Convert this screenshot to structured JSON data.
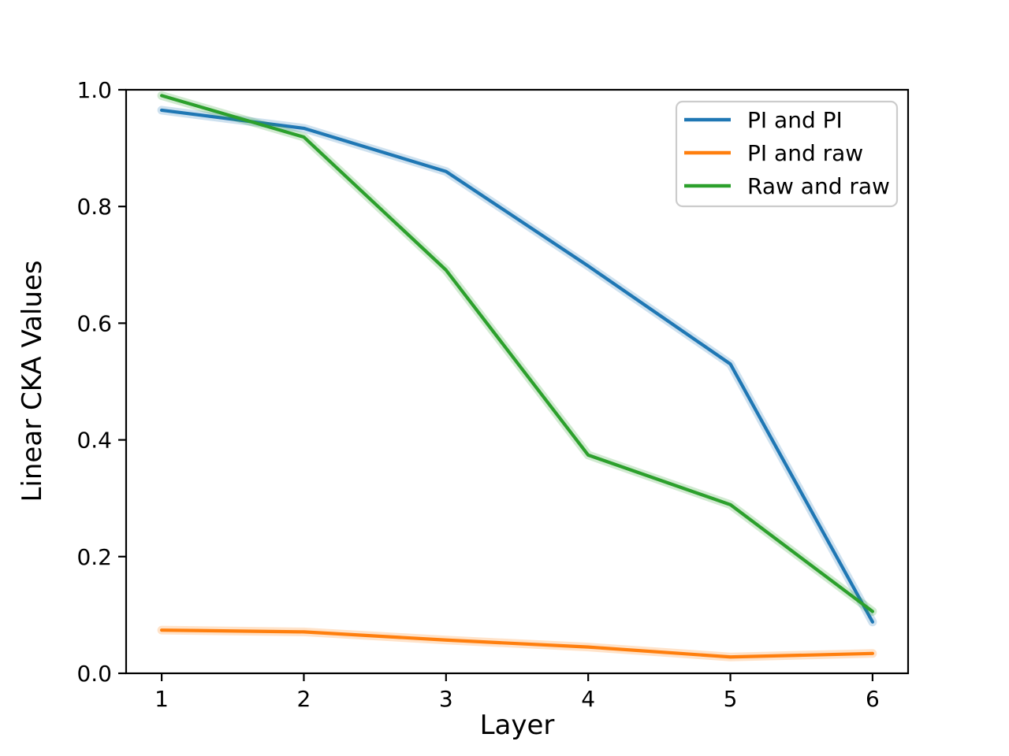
{
  "chart_data": {
    "type": "line",
    "title": "",
    "xlabel": "Layer",
    "ylabel": "Linear CKA Values",
    "x": [
      1,
      2,
      3,
      4,
      5,
      6
    ],
    "xticks": [
      1,
      2,
      3,
      4,
      5,
      6
    ],
    "yticks": [
      0.0,
      0.2,
      0.4,
      0.6,
      0.8,
      1.0
    ],
    "xlim": [
      0.75,
      6.25
    ],
    "ylim": [
      0.0,
      1.0
    ],
    "grid": false,
    "error_band": true,
    "legend_position": "upper right",
    "series": [
      {
        "name": "PI and PI",
        "color": "#1f77b4",
        "values": [
          0.965,
          0.934,
          0.86,
          0.698,
          0.53,
          0.088
        ]
      },
      {
        "name": "PI and raw",
        "color": "#ff7f0e",
        "values": [
          0.074,
          0.071,
          0.057,
          0.045,
          0.028,
          0.034
        ]
      },
      {
        "name": "Raw and raw",
        "color": "#2ca02c",
        "values": [
          0.99,
          0.919,
          0.691,
          0.374,
          0.289,
          0.106
        ]
      }
    ],
    "axis_color": "#000000",
    "legend_border_color": "#cccccc",
    "legend_background": "#ffffff"
  }
}
